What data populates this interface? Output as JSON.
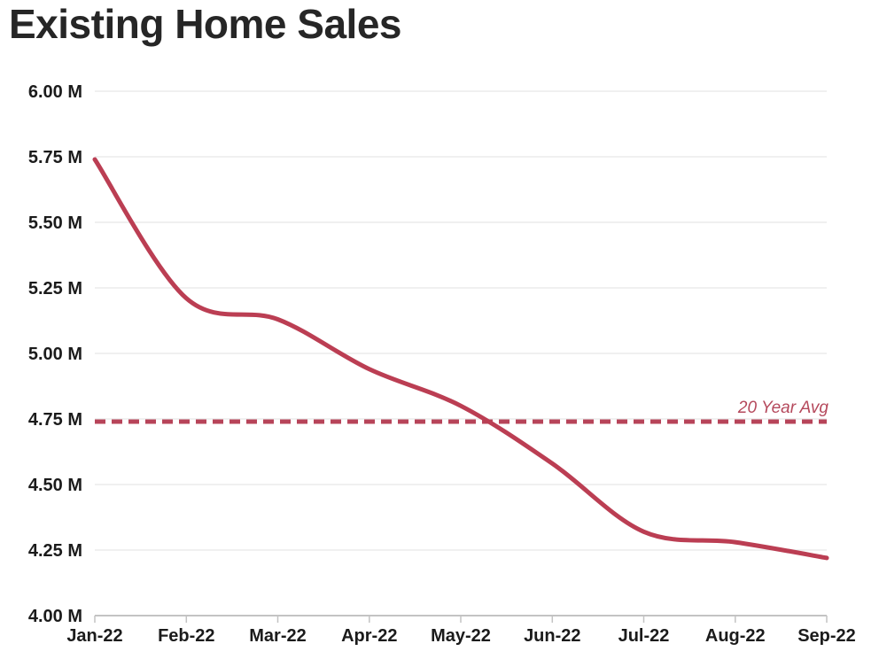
{
  "chart_data": {
    "type": "line",
    "title": "Existing Home Sales",
    "xlabel": "",
    "ylabel": "",
    "categories": [
      "Jan-22",
      "Feb-22",
      "Mar-22",
      "Apr-22",
      "May-22",
      "Jun-22",
      "Jul-22",
      "Aug-22",
      "Sep-22"
    ],
    "series": [
      {
        "name": "Existing Home Sales",
        "values": [
          5.74,
          5.21,
          5.13,
          4.94,
          4.8,
          4.58,
          4.32,
          4.28,
          4.22
        ],
        "color": "#bb3e53"
      }
    ],
    "ylim": [
      4.0,
      6.0
    ],
    "yticks": [
      {
        "value": 4.0,
        "label": "4.00 M"
      },
      {
        "value": 4.25,
        "label": "4.25 M"
      },
      {
        "value": 4.5,
        "label": "4.50 M"
      },
      {
        "value": 4.75,
        "label": "4.75 M"
      },
      {
        "value": 5.0,
        "label": "5.00 M"
      },
      {
        "value": 5.25,
        "label": "5.25 M"
      },
      {
        "value": 5.5,
        "label": "5.50 M"
      },
      {
        "value": 5.75,
        "label": "5.75 M"
      },
      {
        "value": 6.0,
        "label": "6.00 M"
      }
    ],
    "reference_line": {
      "value": 4.74,
      "label": "20 Year Avg",
      "style": "dashed",
      "color": "#b74459"
    },
    "grid": "horizontal-only",
    "legend": "none",
    "colors": {
      "grid_line": "#e7e7e7",
      "axis_line": "#c3c3c3",
      "tick_label": "#1b1b1b",
      "title": "#262626"
    }
  }
}
